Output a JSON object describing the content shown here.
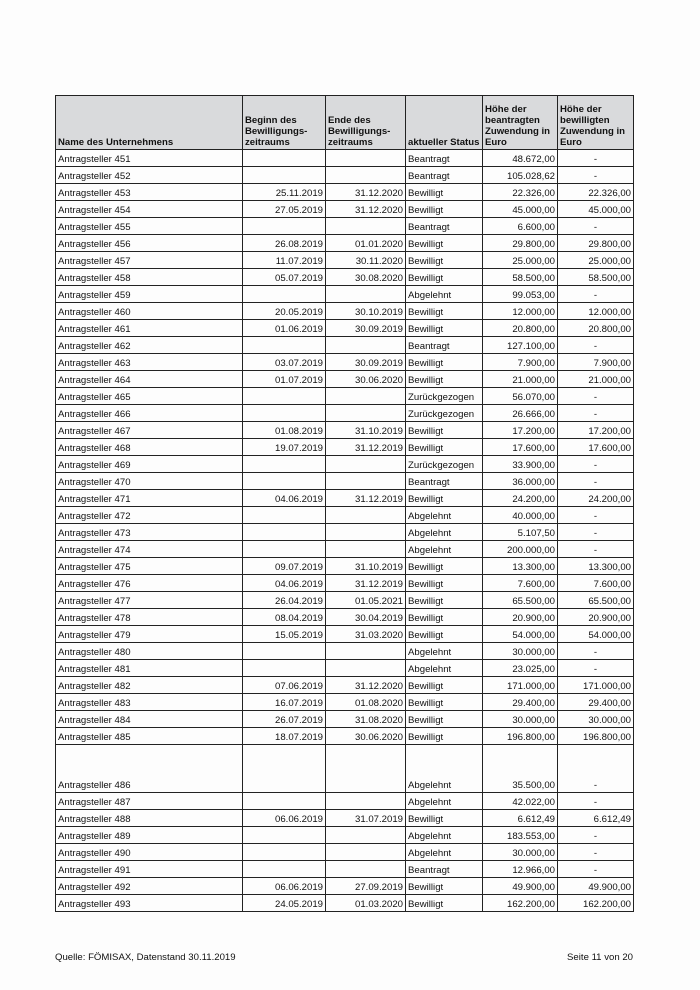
{
  "table": {
    "headers": [
      "Name des Unternehmens",
      "Beginn des Bewilligungs-zeitraums",
      "Ende des Bewilligungs-zeitraums",
      "aktueller Status",
      "Höhe der beantragten Zuwendung in Euro",
      "Höhe der bewilligten Zuwendung in Euro"
    ],
    "rows": [
      [
        "Antragsteller 451",
        "",
        "",
        "Beantragt",
        "48.672,00",
        "-"
      ],
      [
        "Antragsteller 452",
        "",
        "",
        "Beantragt",
        "105.028,62",
        "-"
      ],
      [
        "Antragsteller 453",
        "25.11.2019",
        "31.12.2020",
        "Bewilligt",
        "22.326,00",
        "22.326,00"
      ],
      [
        "Antragsteller 454",
        "27.05.2019",
        "31.12.2020",
        "Bewilligt",
        "45.000,00",
        "45.000,00"
      ],
      [
        "Antragsteller 455",
        "",
        "",
        "Beantragt",
        "6.600,00",
        "-"
      ],
      [
        "Antragsteller 456",
        "26.08.2019",
        "01.01.2020",
        "Bewilligt",
        "29.800,00",
        "29.800,00"
      ],
      [
        "Antragsteller 457",
        "11.07.2019",
        "30.11.2020",
        "Bewilligt",
        "25.000,00",
        "25.000,00"
      ],
      [
        "Antragsteller 458",
        "05.07.2019",
        "30.08.2020",
        "Bewilligt",
        "58.500,00",
        "58.500,00"
      ],
      [
        "Antragsteller 459",
        "",
        "",
        "Abgelehnt",
        "99.053,00",
        "-"
      ],
      [
        "Antragsteller 460",
        "20.05.2019",
        "30.10.2019",
        "Bewilligt",
        "12.000,00",
        "12.000,00"
      ],
      [
        "Antragsteller 461",
        "01.06.2019",
        "30.09.2019",
        "Bewilligt",
        "20.800,00",
        "20.800,00"
      ],
      [
        "Antragsteller 462",
        "",
        "",
        "Beantragt",
        "127.100,00",
        "-"
      ],
      [
        "Antragsteller 463",
        "03.07.2019",
        "30.09.2019",
        "Bewilligt",
        "7.900,00",
        "7.900,00"
      ],
      [
        "Antragsteller 464",
        "01.07.2019",
        "30.06.2020",
        "Bewilligt",
        "21.000,00",
        "21.000,00"
      ],
      [
        "Antragsteller 465",
        "",
        "",
        "Zurückgezogen",
        "56.070,00",
        "-"
      ],
      [
        "Antragsteller 466",
        "",
        "",
        "Zurückgezogen",
        "26.666,00",
        "-"
      ],
      [
        "Antragsteller 467",
        "01.08.2019",
        "31.10.2019",
        "Bewilligt",
        "17.200,00",
        "17.200,00"
      ],
      [
        "Antragsteller 468",
        "19.07.2019",
        "31.12.2019",
        "Bewilligt",
        "17.600,00",
        "17.600,00"
      ],
      [
        "Antragsteller 469",
        "",
        "",
        "Zurückgezogen",
        "33.900,00",
        "-"
      ],
      [
        "Antragsteller 470",
        "",
        "",
        "Beantragt",
        "36.000,00",
        "-"
      ],
      [
        "Antragsteller 471",
        "04.06.2019",
        "31.12.2019",
        "Bewilligt",
        "24.200,00",
        "24.200,00"
      ],
      [
        "Antragsteller 472",
        "",
        "",
        "Abgelehnt",
        "40.000,00",
        "-"
      ],
      [
        "Antragsteller 473",
        "",
        "",
        "Abgelehnt",
        "5.107,50",
        "-"
      ],
      [
        "Antragsteller 474",
        "",
        "",
        "Abgelehnt",
        "200.000,00",
        "-"
      ],
      [
        "Antragsteller 475",
        "09.07.2019",
        "31.10.2019",
        "Bewilligt",
        "13.300,00",
        "13.300,00"
      ],
      [
        "Antragsteller 476",
        "04.06.2019",
        "31.12.2019",
        "Bewilligt",
        "7.600,00",
        "7.600,00"
      ],
      [
        "Antragsteller 477",
        "26.04.2019",
        "01.05.2021",
        "Bewilligt",
        "65.500,00",
        "65.500,00"
      ],
      [
        "Antragsteller 478",
        "08.04.2019",
        "30.04.2019",
        "Bewilligt",
        "20.900,00",
        "20.900,00"
      ],
      [
        "Antragsteller 479",
        "15.05.2019",
        "31.03.2020",
        "Bewilligt",
        "54.000,00",
        "54.000,00"
      ],
      [
        "Antragsteller 480",
        "",
        "",
        "Abgelehnt",
        "30.000,00",
        "-"
      ],
      [
        "Antragsteller 481",
        "",
        "",
        "Abgelehnt",
        "23.025,00",
        "-"
      ],
      [
        "Antragsteller 482",
        "07.06.2019",
        "31.12.2020",
        "Bewilligt",
        "171.000,00",
        "171.000,00"
      ],
      [
        "Antragsteller 483",
        "16.07.2019",
        "01.08.2020",
        "Bewilligt",
        "29.400,00",
        "29.400,00"
      ],
      [
        "Antragsteller 484",
        "26.07.2019",
        "31.08.2020",
        "Bewilligt",
        "30.000,00",
        "30.000,00"
      ],
      [
        "Antragsteller 485",
        "18.07.2019",
        "30.06.2020",
        "Bewilligt",
        "196.800,00",
        "196.800,00"
      ],
      [
        "Antragsteller 486",
        "",
        "",
        "Abgelehnt",
        "35.500,00",
        "-"
      ],
      [
        "Antragsteller 487",
        "",
        "",
        "Abgelehnt",
        "42.022,00",
        "-"
      ],
      [
        "Antragsteller 488",
        "06.06.2019",
        "31.07.2019",
        "Bewilligt",
        "6.612,49",
        "6.612,49"
      ],
      [
        "Antragsteller 489",
        "",
        "",
        "Abgelehnt",
        "183.553,00",
        "-"
      ],
      [
        "Antragsteller 490",
        "",
        "",
        "Abgelehnt",
        "30.000,00",
        "-"
      ],
      [
        "Antragsteller 491",
        "",
        "",
        "Beantragt",
        "12.966,00",
        "-"
      ],
      [
        "Antragsteller 492",
        "06.06.2019",
        "27.09.2019",
        "Bewilligt",
        "49.900,00",
        "49.900,00"
      ],
      [
        "Antragsteller 493",
        "24.05.2019",
        "01.03.2020",
        "Bewilligt",
        "162.200,00",
        "162.200,00"
      ]
    ]
  },
  "footer": {
    "source": "Quelle: FÖMISAX, Datenstand 30.11.2019",
    "page": "Seite 11 von 20"
  }
}
